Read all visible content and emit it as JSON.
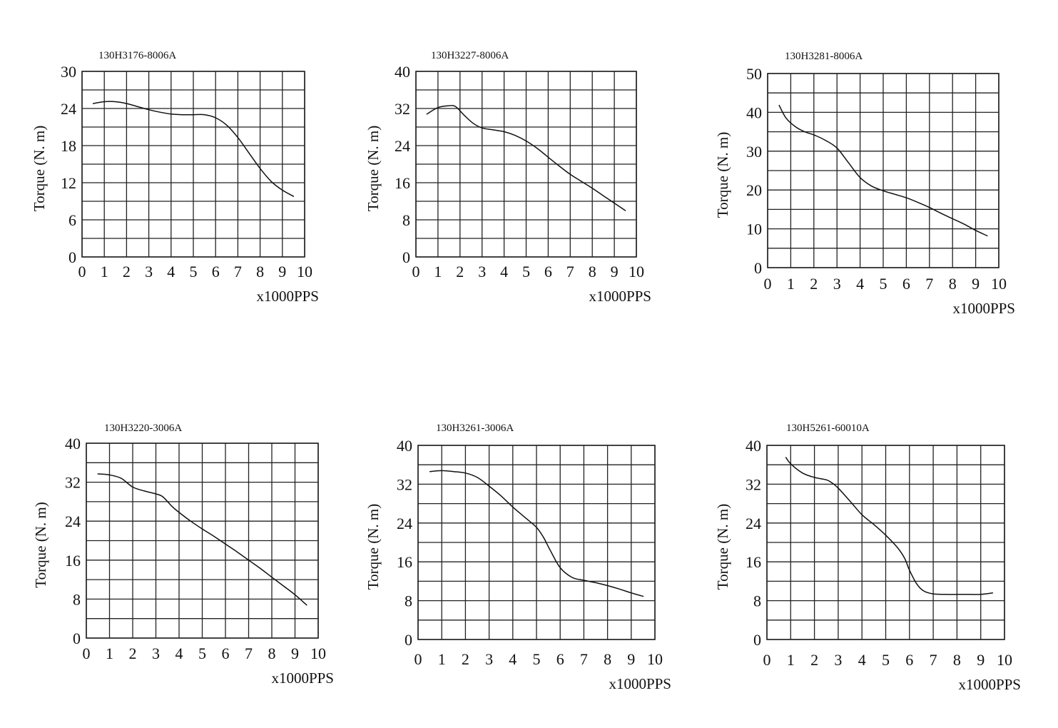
{
  "chart_data": [
    {
      "type": "line",
      "title": "130H3176-8006A",
      "ylabel": "Torque (N. m)",
      "xlabel": "x1000PPS",
      "xlim": [
        0,
        10
      ],
      "ylim": [
        0,
        30
      ],
      "xticks": [
        0,
        1,
        2,
        3,
        4,
        5,
        6,
        7,
        8,
        9,
        10
      ],
      "yticks": [
        0,
        6,
        12,
        18,
        24,
        30
      ],
      "grid": true,
      "series": [
        {
          "x": [
            0.5,
            1.0,
            1.5,
            2.0,
            2.5,
            3.0,
            3.5,
            4.0,
            4.5,
            5.0,
            5.5,
            6.0,
            6.5,
            7.0,
            7.5,
            8.0,
            8.5,
            9.0,
            9.5
          ],
          "y": [
            24.8,
            25.1,
            25.1,
            24.8,
            24.3,
            23.8,
            23.4,
            23.1,
            23.0,
            23.0,
            23.0,
            22.5,
            21.3,
            19.3,
            16.8,
            14.3,
            12.2,
            10.8,
            9.8
          ]
        }
      ]
    },
    {
      "type": "line",
      "title": "130H3227-8006A",
      "ylabel": "Torque (N. m)",
      "xlabel": "x1000PPS",
      "xlim": [
        0,
        10
      ],
      "ylim": [
        0,
        40
      ],
      "xticks": [
        0,
        1,
        2,
        3,
        4,
        5,
        6,
        7,
        8,
        9,
        10
      ],
      "yticks": [
        0,
        8,
        16,
        24,
        32,
        40
      ],
      "grid": true,
      "series": [
        {
          "x": [
            0.5,
            1.0,
            1.5,
            1.8,
            2.2,
            2.6,
            3.0,
            3.5,
            4.0,
            4.5,
            5.0,
            5.5,
            6.0,
            6.5,
            7.0,
            7.5,
            8.0,
            8.5,
            9.0,
            9.5
          ],
          "y": [
            30.8,
            32.2,
            32.6,
            32.4,
            30.5,
            28.8,
            27.8,
            27.4,
            27.0,
            26.2,
            25.0,
            23.4,
            21.5,
            19.6,
            17.8,
            16.3,
            14.8,
            13.2,
            11.6,
            10.0
          ]
        }
      ]
    },
    {
      "type": "line",
      "title": "130H3281-8006A",
      "ylabel": "Torque (N. m)",
      "xlabel": "x1000PPS",
      "xlim": [
        0,
        10
      ],
      "ylim": [
        0,
        50
      ],
      "xticks": [
        0,
        1,
        2,
        3,
        4,
        5,
        6,
        7,
        8,
        9,
        10
      ],
      "yticks": [
        0,
        10,
        20,
        30,
        40,
        50
      ],
      "grid": true,
      "series": [
        {
          "x": [
            0.5,
            0.8,
            1.2,
            1.6,
            2.0,
            2.5,
            3.0,
            3.5,
            4.0,
            4.5,
            5.0,
            5.5,
            6.0,
            6.5,
            7.0,
            7.5,
            8.0,
            8.5,
            9.0,
            9.5
          ],
          "y": [
            41.8,
            38.5,
            36.3,
            35.0,
            34.2,
            32.8,
            30.8,
            27.0,
            23.2,
            21.0,
            19.8,
            18.9,
            18.0,
            16.8,
            15.5,
            14.0,
            12.6,
            11.2,
            9.6,
            8.2
          ]
        }
      ]
    },
    {
      "type": "line",
      "title": "130H3220-3006A",
      "ylabel": "Torque (N. m)",
      "xlabel": "x1000PPS",
      "xlim": [
        0,
        10
      ],
      "ylim": [
        0,
        40
      ],
      "xticks": [
        0,
        1,
        2,
        3,
        4,
        5,
        6,
        7,
        8,
        9,
        10
      ],
      "yticks": [
        0,
        8,
        16,
        24,
        32,
        40
      ],
      "grid": true,
      "series": [
        {
          "x": [
            0.5,
            1.0,
            1.5,
            2.0,
            2.5,
            3.0,
            3.3,
            3.7,
            4.0,
            4.5,
            5.0,
            5.5,
            6.0,
            6.5,
            7.0,
            7.5,
            8.0,
            8.5,
            9.0,
            9.5
          ],
          "y": [
            33.7,
            33.5,
            32.8,
            31.0,
            30.2,
            29.6,
            29.0,
            27.0,
            25.8,
            24.0,
            22.4,
            20.9,
            19.3,
            17.7,
            16.0,
            14.3,
            12.5,
            10.7,
            8.9,
            6.8
          ]
        }
      ]
    },
    {
      "type": "line",
      "title": "130H3261-3006A",
      "ylabel": "Torque (N. m)",
      "xlabel": "x1000PPS",
      "xlim": [
        0,
        10
      ],
      "ylim": [
        0,
        40
      ],
      "xticks": [
        0,
        1,
        2,
        3,
        4,
        5,
        6,
        7,
        8,
        9,
        10
      ],
      "yticks": [
        0,
        8,
        16,
        24,
        32,
        40
      ],
      "grid": true,
      "series": [
        {
          "x": [
            0.5,
            1.0,
            1.5,
            2.0,
            2.5,
            3.0,
            3.5,
            4.0,
            4.5,
            5.0,
            5.3,
            5.6,
            6.0,
            6.5,
            7.0,
            7.5,
            8.0,
            8.5,
            9.0,
            9.5
          ],
          "y": [
            34.6,
            34.8,
            34.6,
            34.3,
            33.4,
            31.6,
            29.6,
            27.3,
            25.2,
            23.1,
            21.0,
            18.2,
            14.8,
            12.8,
            12.2,
            11.7,
            11.1,
            10.4,
            9.6,
            8.9
          ]
        }
      ]
    },
    {
      "type": "line",
      "title": "130H5261-60010A",
      "ylabel": "Torque (N. m)",
      "xlabel": "x1000PPS",
      "xlim": [
        0,
        10
      ],
      "ylim": [
        0,
        40
      ],
      "xticks": [
        0,
        1,
        2,
        3,
        4,
        5,
        6,
        7,
        8,
        9,
        10
      ],
      "yticks": [
        0,
        8,
        16,
        24,
        32,
        40
      ],
      "grid": true,
      "series": [
        {
          "x": [
            0.8,
            1.0,
            1.5,
            2.0,
            2.5,
            2.7,
            3.0,
            3.5,
            4.0,
            4.5,
            5.0,
            5.5,
            5.8,
            6.0,
            6.3,
            6.6,
            7.0,
            7.5,
            8.0,
            8.5,
            9.0,
            9.5
          ],
          "y": [
            37.5,
            36.2,
            34.3,
            33.4,
            32.9,
            32.4,
            31.2,
            28.5,
            25.7,
            23.7,
            21.5,
            18.9,
            16.7,
            14.3,
            11.5,
            10.0,
            9.4,
            9.3,
            9.3,
            9.3,
            9.3,
            9.6
          ]
        }
      ]
    }
  ]
}
